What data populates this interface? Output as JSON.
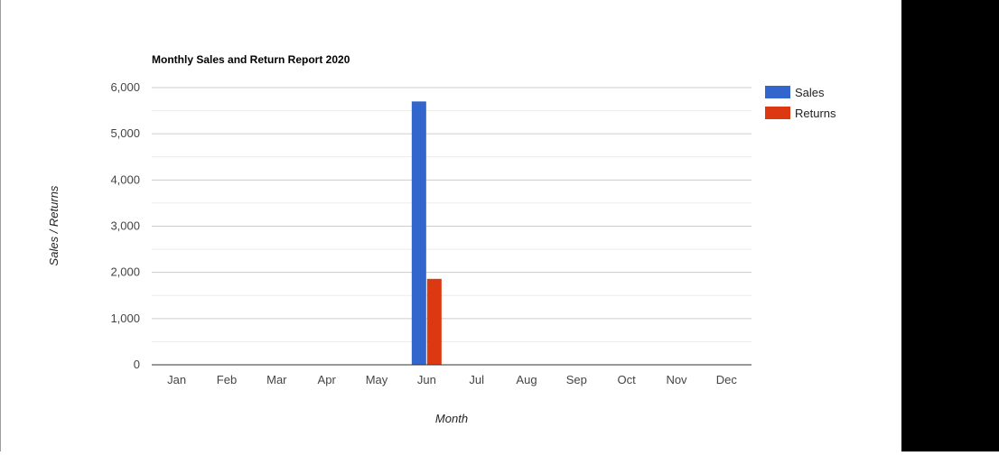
{
  "chart_data": {
    "type": "bar",
    "title": "Monthly Sales and Return Report 2020",
    "xlabel": "Month",
    "ylabel": "Sales / Returns",
    "categories": [
      "Jan",
      "Feb",
      "Mar",
      "Apr",
      "May",
      "Jun",
      "Jul",
      "Aug",
      "Sep",
      "Oct",
      "Nov",
      "Dec"
    ],
    "series": [
      {
        "name": "Sales",
        "color": "#3366cc",
        "values": [
          0,
          0,
          0,
          0,
          0,
          5700,
          0,
          0,
          0,
          0,
          0,
          0
        ]
      },
      {
        "name": "Returns",
        "color": "#dc3912",
        "values": [
          0,
          0,
          0,
          0,
          0,
          1860,
          0,
          0,
          0,
          0,
          0,
          0
        ]
      }
    ],
    "ylim": [
      0,
      6000
    ],
    "yticks": [
      "0",
      "1,000",
      "2,000",
      "3,000",
      "4,000",
      "5,000",
      "6,000"
    ],
    "ytick_values": [
      0,
      1000,
      2000,
      3000,
      4000,
      5000,
      6000
    ],
    "grid": true,
    "legend": "right"
  }
}
